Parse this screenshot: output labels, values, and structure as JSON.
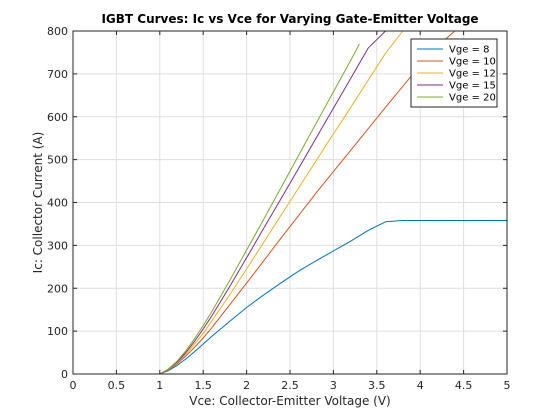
{
  "chart_data": {
    "type": "line",
    "title": "IGBT Curves: Ic vs Vce for Varying Gate-Emitter Voltage",
    "xlabel": "Vce: Collector-Emitter Voltage (V)",
    "ylabel": "Ic: Collector Current (A)",
    "xlim": [
      0,
      5
    ],
    "ylim": [
      0,
      800
    ],
    "xticks": [
      0,
      0.5,
      1,
      1.5,
      2,
      2.5,
      3,
      3.5,
      4,
      4.5,
      5
    ],
    "xtick_labels": [
      "0",
      "0.5",
      "1",
      "1.5",
      "2",
      "2.5",
      "3",
      "3.5",
      "4",
      "4.5",
      "5"
    ],
    "yticks": [
      0,
      100,
      200,
      300,
      400,
      500,
      600,
      700,
      800
    ],
    "ytick_labels": [
      "0",
      "100",
      "200",
      "300",
      "400",
      "500",
      "600",
      "700",
      "800"
    ],
    "grid": true,
    "legend_position": "top-right",
    "series": [
      {
        "name": "Vge = 8",
        "color": "#0072bd",
        "x": [
          0,
          1.0,
          1.1,
          1.2,
          1.3,
          1.4,
          1.5,
          1.6,
          1.8,
          2.0,
          2.2,
          2.4,
          2.6,
          2.8,
          3.0,
          3.2,
          3.4,
          3.6,
          3.8,
          4.0,
          4.5,
          5.0
        ],
        "y": [
          0,
          0,
          8,
          20,
          35,
          52,
          70,
          88,
          122,
          155,
          185,
          213,
          240,
          264,
          287,
          310,
          335,
          355,
          358,
          358,
          358,
          358
        ]
      },
      {
        "name": "Vge = 10",
        "color": "#d95319",
        "x": [
          0,
          1.0,
          1.1,
          1.2,
          1.3,
          1.4,
          1.5,
          1.6,
          1.8,
          2.0,
          2.2,
          2.4,
          2.6,
          2.8,
          3.0,
          3.2,
          3.4,
          3.6,
          3.8,
          4.0,
          4.2,
          4.4,
          4.6
        ],
        "y": [
          0,
          0,
          9,
          24,
          42,
          62,
          84,
          108,
          160,
          212,
          265,
          318,
          370,
          422,
          472,
          522,
          572,
          622,
          671,
          720,
          765,
          800,
          800
        ]
      },
      {
        "name": "Vge = 12",
        "color": "#edb120",
        "x": [
          0,
          1.0,
          1.1,
          1.2,
          1.3,
          1.4,
          1.5,
          1.6,
          1.8,
          2.0,
          2.2,
          2.4,
          2.6,
          2.8,
          3.0,
          3.2,
          3.4,
          3.6,
          3.8,
          4.0
        ],
        "y": [
          0,
          0,
          10,
          26,
          46,
          70,
          95,
          124,
          183,
          245,
          308,
          371,
          434,
          497,
          560,
          622,
          685,
          748,
          800,
          800
        ]
      },
      {
        "name": "Vge = 15",
        "color": "#7e2f8e",
        "x": [
          0,
          1.0,
          1.1,
          1.2,
          1.3,
          1.4,
          1.5,
          1.6,
          1.8,
          2.0,
          2.2,
          2.4,
          2.6,
          2.8,
          3.0,
          3.2,
          3.4,
          3.6
        ],
        "y": [
          0,
          0,
          11,
          28,
          50,
          76,
          105,
          136,
          202,
          271,
          341,
          410,
          480,
          550,
          620,
          690,
          760,
          800
        ]
      },
      {
        "name": "Vge = 20",
        "color": "#77ac30",
        "x": [
          0,
          1.0,
          1.1,
          1.2,
          1.3,
          1.4,
          1.5,
          1.6,
          1.8,
          2.0,
          2.2,
          2.4,
          2.6,
          2.8,
          3.0,
          3.2,
          3.3
        ],
        "y": [
          0,
          0,
          12,
          30,
          54,
          82,
          113,
          146,
          216,
          289,
          362,
          436,
          510,
          584,
          658,
          732,
          770
        ]
      }
    ]
  }
}
